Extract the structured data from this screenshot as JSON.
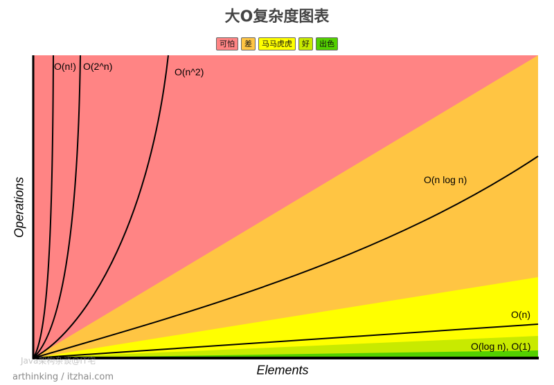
{
  "chart_data": {
    "type": "area",
    "title": "大O复杂度图表",
    "xlabel": "Elements",
    "ylabel": "Operations",
    "legend": {
      "placement": "top-center",
      "entries": [
        {
          "label": "可怕",
          "color": "#ff8484"
        },
        {
          "label": "差",
          "color": "#ffc543"
        },
        {
          "label": "马马虎虎",
          "color": "#ffff00"
        },
        {
          "label": "好",
          "color": "#c8ea00"
        },
        {
          "label": "出色",
          "color": "#53d000"
        }
      ]
    },
    "curves": [
      {
        "label": "O(n!)"
      },
      {
        "label": "O(2^n)"
      },
      {
        "label": "O(n^2)"
      },
      {
        "label": "O(n log n)"
      },
      {
        "label": "O(n)"
      },
      {
        "label": "O(log n), O(1)"
      }
    ],
    "grid": false
  },
  "watermark": "Java架构杂谈@IT宅",
  "credit": "arthinking / itzhai.com"
}
